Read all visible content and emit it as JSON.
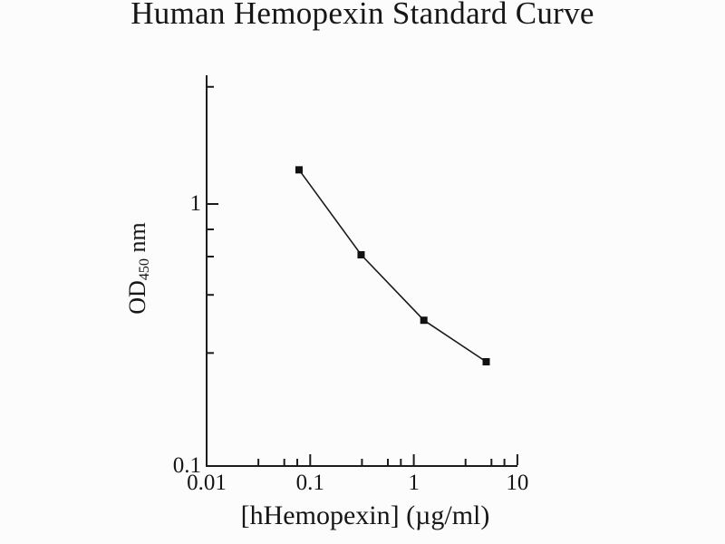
{
  "page": {
    "background": "#fcfcfc",
    "ink": "#161616"
  },
  "chart_data": {
    "type": "line",
    "title": "Human Hemopexin Standard Curve",
    "xlabel": "[hHemopexin] (µg/ml)",
    "ylabel": {
      "pre": "OD",
      "sub": "450",
      "post": " nm"
    },
    "x_scale": "log",
    "y_scale": "log",
    "xlim": [
      0.01,
      10
    ],
    "ylim": [
      0.1,
      3.1
    ],
    "grid": false,
    "legend": "none",
    "marker": "filled-square",
    "line_color": "#1a1a1a",
    "marker_color": "#111111",
    "axis_color": "#1c1c1c",
    "series": [
      {
        "name": "Human Hemopexin standard",
        "points": [
          {
            "x": 0.078,
            "y": 1.35
          },
          {
            "x": 0.31,
            "y": 0.64
          },
          {
            "x": 1.25,
            "y": 0.36
          },
          {
            "x": 5,
            "y": 0.25
          }
        ]
      }
    ],
    "x_ticks": {
      "values": [
        0.01,
        0.1,
        1,
        10
      ],
      "labels": [
        "0.01",
        "0.1",
        "1",
        "10"
      ]
    },
    "y_ticks": {
      "values": [
        0.1,
        1
      ],
      "labels": [
        "0.1",
        "1"
      ]
    },
    "x_minor_ticks": [
      0.0316,
      0.0562,
      0.075,
      0.316,
      0.562,
      0.75,
      3.16,
      5.62,
      7.5
    ],
    "y_minor_ticks": [
      0.27,
      0.45,
      0.63,
      0.8,
      2.8
    ]
  }
}
